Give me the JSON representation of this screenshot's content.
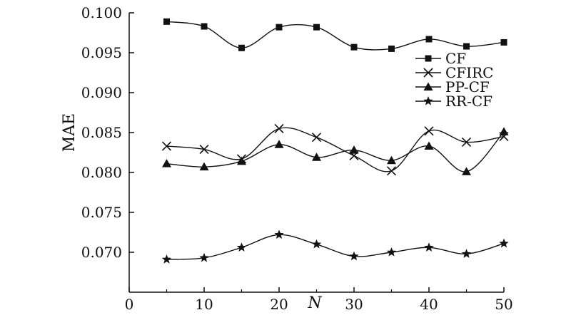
{
  "chart_data": {
    "type": "line",
    "xlabel": "N",
    "ylabel": "MAE",
    "xlim": [
      0,
      50
    ],
    "ylim": [
      0.065,
      0.1
    ],
    "xticks": [
      "0",
      "10",
      "20",
      "30",
      "40",
      "50"
    ],
    "yticks": [
      "0.070",
      "0.075",
      "0.080",
      "0.085",
      "0.090",
      "0.095",
      "0.100"
    ],
    "grid": false,
    "legend_position": "right",
    "x": [
      5,
      10,
      15,
      20,
      25,
      30,
      35,
      40,
      45,
      50
    ],
    "series": [
      {
        "name": "CF",
        "marker": "square",
        "values": [
          0.0989,
          0.0983,
          0.0956,
          0.0982,
          0.0982,
          0.0957,
          0.0955,
          0.0967,
          0.0958,
          0.0963
        ]
      },
      {
        "name": "CFIRC",
        "marker": "cross",
        "values": [
          0.0833,
          0.0829,
          0.0817,
          0.0855,
          0.0844,
          0.0821,
          0.0802,
          0.0852,
          0.0838,
          0.0845
        ]
      },
      {
        "name": "PP-CF",
        "marker": "triangle",
        "values": [
          0.0811,
          0.0807,
          0.0814,
          0.0835,
          0.0819,
          0.0828,
          0.0815,
          0.0833,
          0.0801,
          0.0851
        ]
      },
      {
        "name": "RR-CF",
        "marker": "star",
        "values": [
          0.0691,
          0.0693,
          0.0706,
          0.0722,
          0.071,
          0.0695,
          0.07,
          0.0706,
          0.0698,
          0.0711
        ]
      }
    ]
  }
}
